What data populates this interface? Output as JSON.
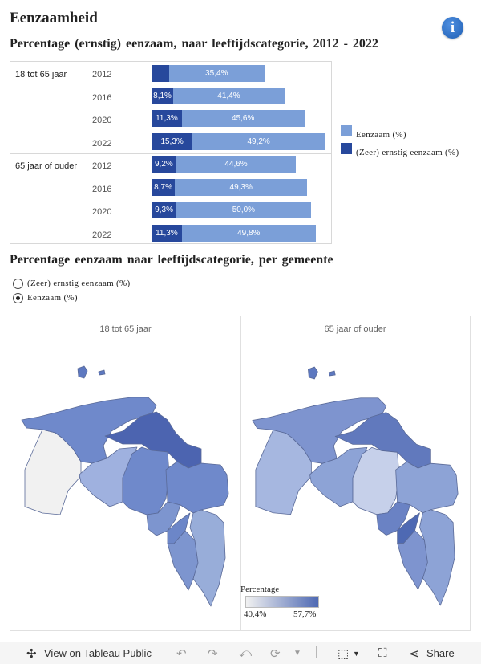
{
  "header": {
    "title": "Eenzaamheid",
    "info_icon": "i"
  },
  "bar_section": {
    "title": "Percentage (ernstig) eenzaam, naar leeftijdscategorie, 2012 - 2022"
  },
  "chart_data": {
    "type": "bar",
    "orientation": "horizontal",
    "groups": [
      "18 tot 65 jaar",
      "65 jaar of ouder"
    ],
    "years": [
      "2012",
      "2016",
      "2020",
      "2022"
    ],
    "series": [
      {
        "name": "Eenzaam (%)",
        "color": "#7b9fd8",
        "values": [
          [
            35.4,
            41.4,
            45.6,
            49.2
          ],
          [
            44.6,
            49.3,
            50.0,
            49.8
          ]
        ],
        "labels": [
          [
            "35,4%",
            "41,4%",
            "45,6%",
            "49,2%"
          ],
          [
            "44,6%",
            "49,3%",
            "50,0%",
            "49,8%"
          ]
        ]
      },
      {
        "name": "(Zeer) ernstig eenzaam (%)",
        "color": "#27489c",
        "values": [
          [
            null,
            8.1,
            11.3,
            15.3
          ],
          [
            9.2,
            8.7,
            9.3,
            11.3
          ]
        ],
        "labels": [
          [
            "",
            "8,1%",
            "11,3%",
            "15,3%"
          ],
          [
            "9,2%",
            "8,7%",
            "9,3%",
            "11,3%"
          ]
        ]
      }
    ]
  },
  "legend": {
    "items": [
      {
        "label": "Eenzaam (%)",
        "color": "#7b9fd8"
      },
      {
        "label": "(Zeer) ernstig eenzaam (%)",
        "color": "#27489c"
      }
    ]
  },
  "map_section": {
    "title": "Percentage eenzaam naar leeftijdscategorie, per gemeente",
    "options": [
      {
        "label": "(Zeer) ernstig eenzaam (%)",
        "selected": false
      },
      {
        "label": "Eenzaam (%)",
        "selected": true
      }
    ],
    "panels": [
      "18 tot 65 jaar",
      "65 jaar of ouder"
    ],
    "scale": {
      "title": "Percentage",
      "min": "40,4%",
      "max": "57,7%",
      "from_color": "#f1f1f1",
      "to_color": "#4e69b3"
    }
  },
  "toolbar": {
    "view_label": "View on Tableau Public",
    "share_label": "Share"
  }
}
